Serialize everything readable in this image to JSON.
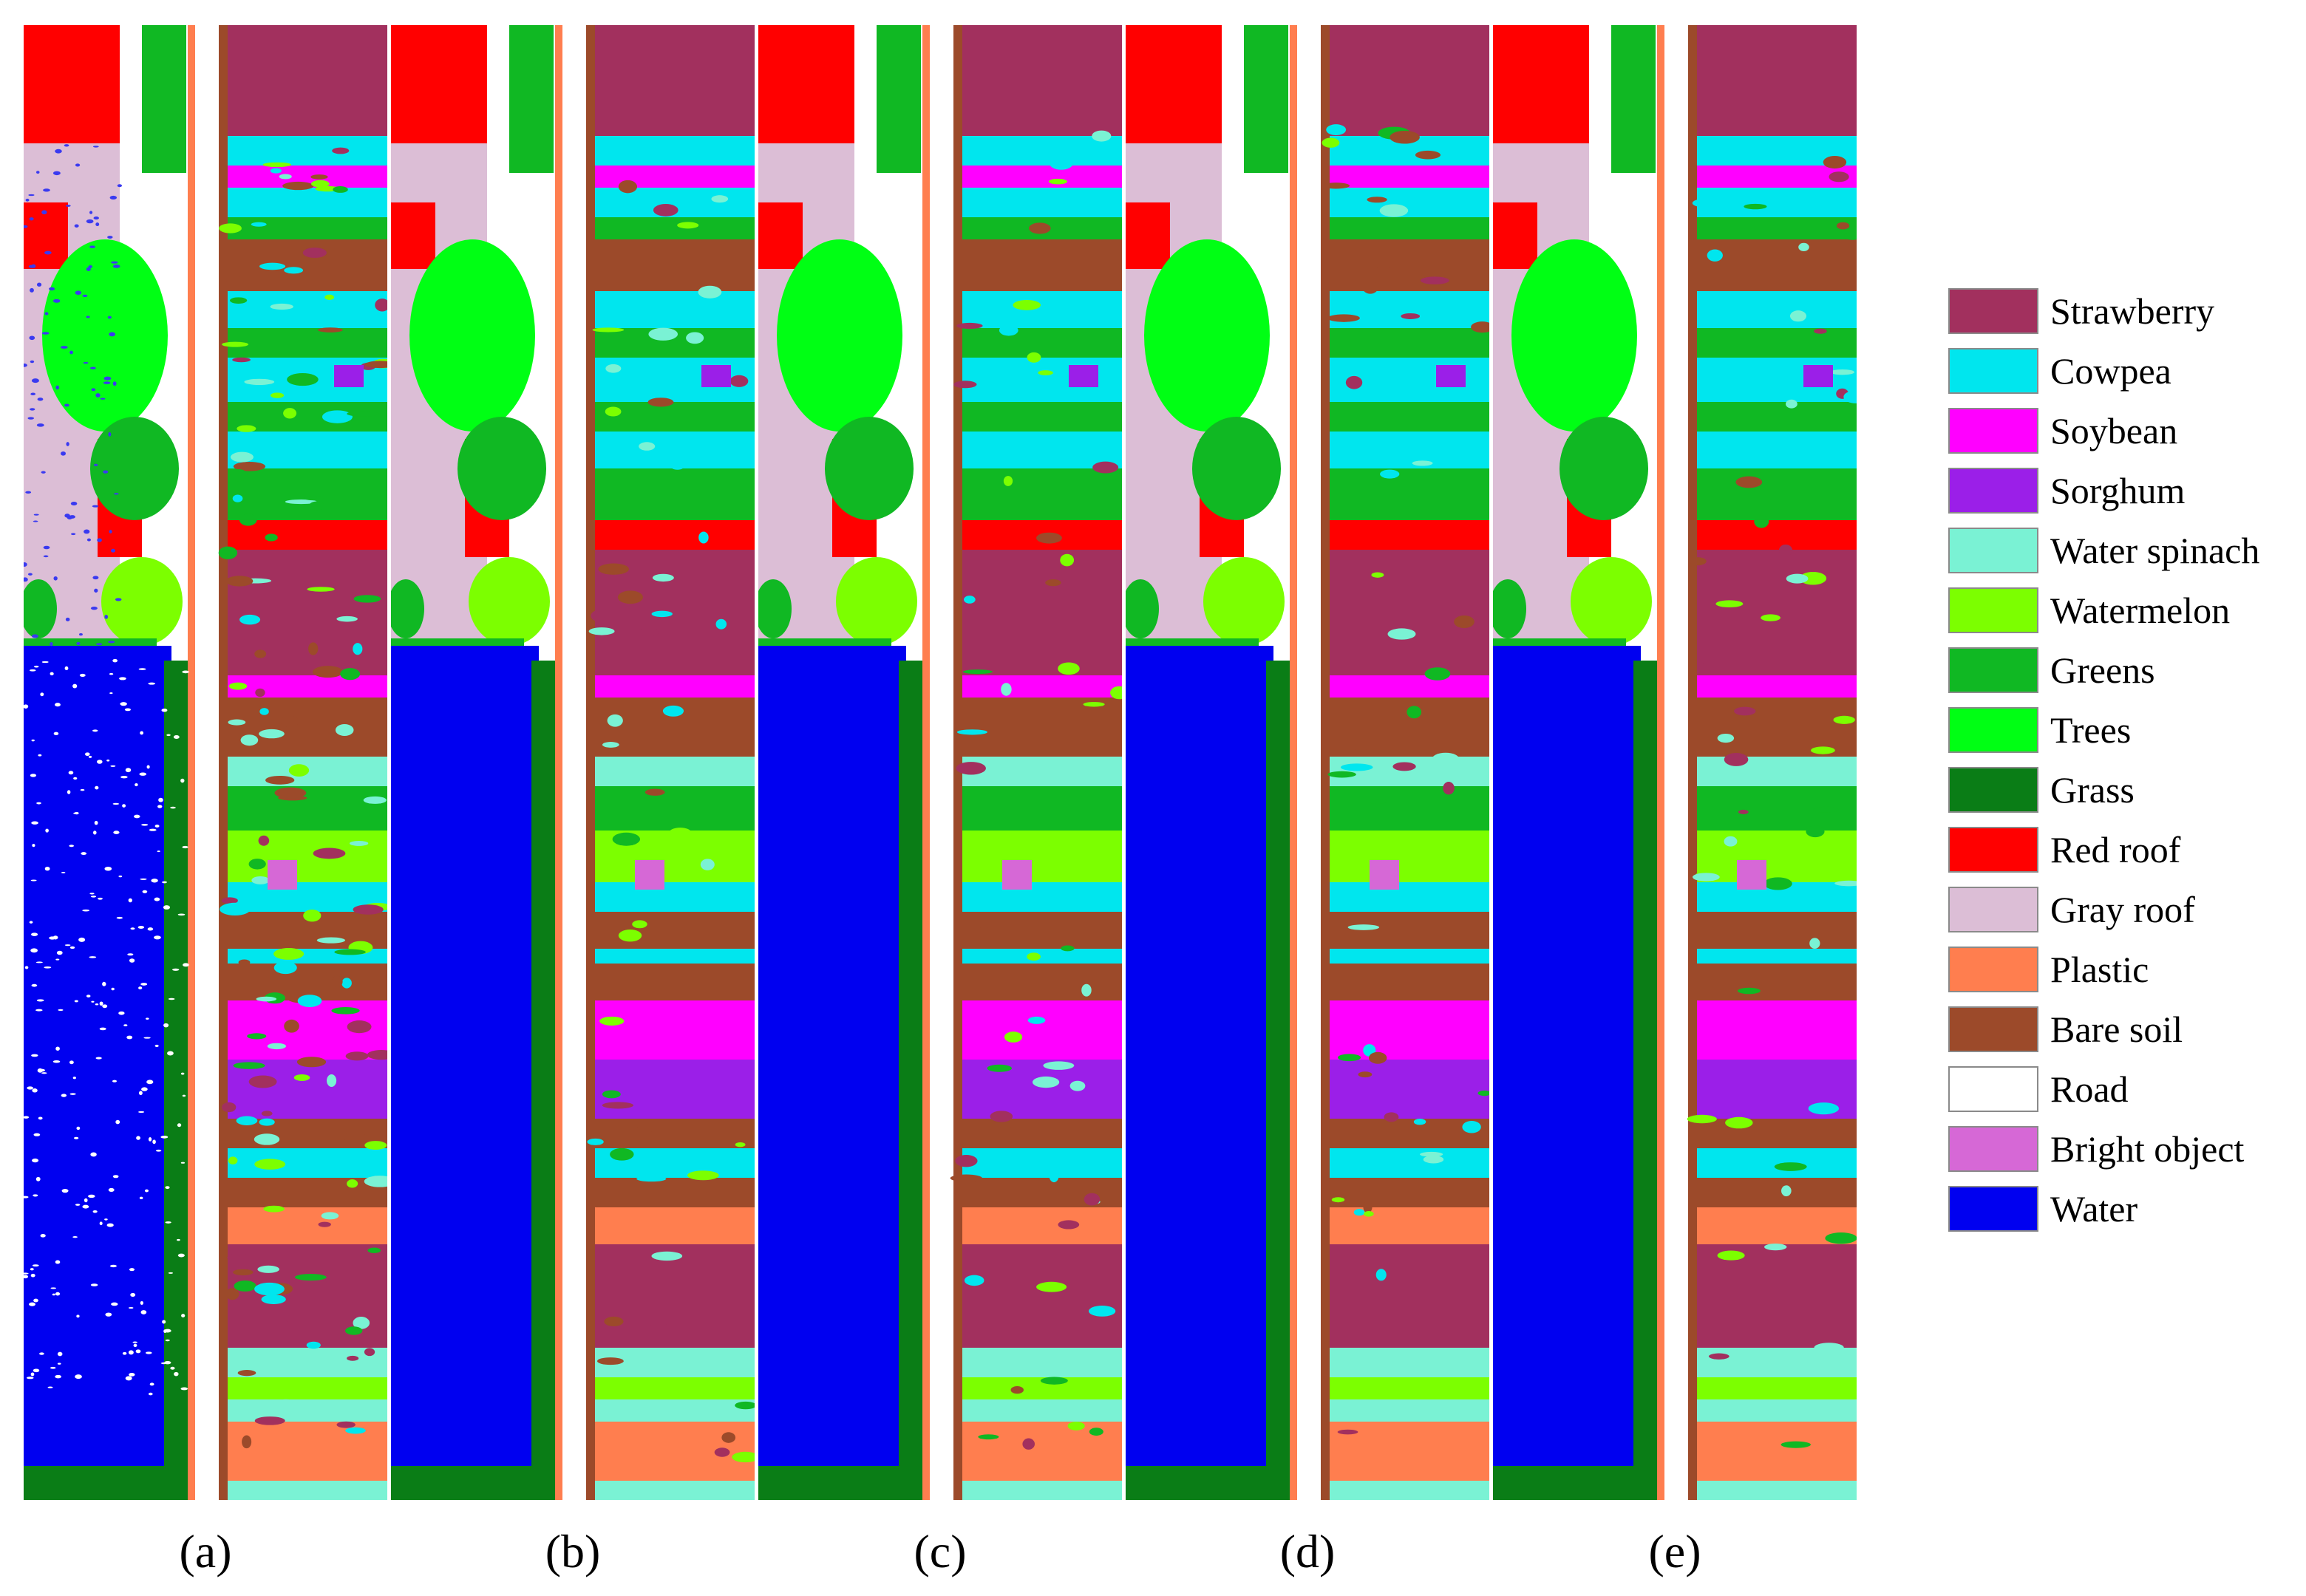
{
  "captions": [
    "(a)",
    "(b)",
    "(c)",
    "(d)",
    "(e)"
  ],
  "legend": [
    {
      "label": "Strawberry",
      "color": "#A2305E"
    },
    {
      "label": "Cowpea",
      "color": "#00E6EE"
    },
    {
      "label": "Soybean",
      "color": "#FF00FF"
    },
    {
      "label": "Sorghum",
      "color": "#9B1FE8"
    },
    {
      "label": "Water spinach",
      "color": "#7AF2D4"
    },
    {
      "label": "Watermelon",
      "color": "#7CFF00"
    },
    {
      "label": "Greens",
      "color": "#10B823"
    },
    {
      "label": "Trees",
      "color": "#00FF14"
    },
    {
      "label": "Grass",
      "color": "#0A7D16"
    },
    {
      "label": "Red roof",
      "color": "#FF0000"
    },
    {
      "label": "Gray roof",
      "color": "#DCBED6"
    },
    {
      "label": "Plastic",
      "color": "#FF7E4F"
    },
    {
      "label": "Bare soil",
      "color": "#9C4A2A"
    },
    {
      "label": "Road",
      "color": "#FFFFFF"
    },
    {
      "label": "Bright object",
      "color": "#D668D6"
    },
    {
      "label": "Water",
      "color": "#0000F0"
    }
  ]
}
